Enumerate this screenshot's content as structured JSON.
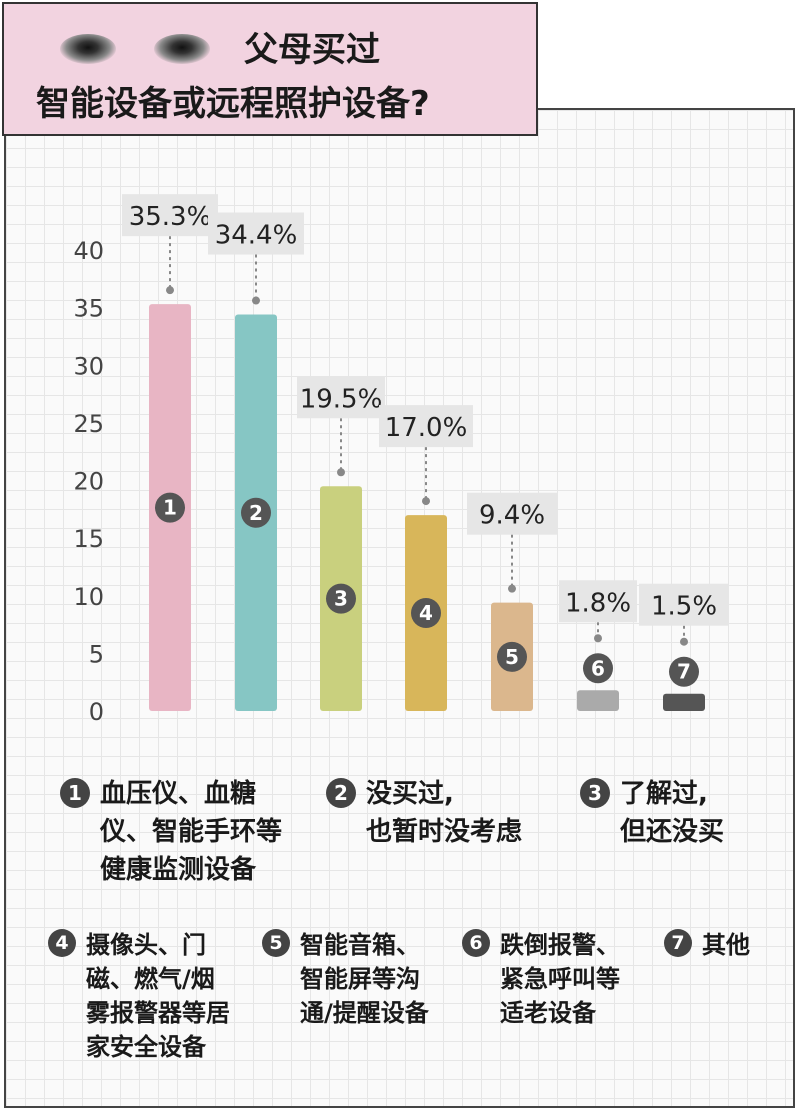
{
  "title": {
    "line1": "父母买过",
    "line2": "智能设备或远程照护设备?"
  },
  "chart_data": {
    "type": "bar",
    "categories": [
      "1",
      "2",
      "3",
      "4",
      "5",
      "6",
      "7"
    ],
    "values": [
      35.3,
      34.4,
      19.5,
      17.0,
      9.4,
      1.8,
      1.5
    ],
    "value_labels": [
      "35.3%",
      "34.4%",
      "19.5%",
      "17.0%",
      "9.4%",
      "1.8%",
      "1.5%"
    ],
    "bar_markers": [
      "1",
      "2",
      "3",
      "4",
      "5",
      "6",
      "7"
    ],
    "colors": [
      "#e8b5c4",
      "#86c6c4",
      "#c9d07e",
      "#d8b65a",
      "#dbb78d",
      "#aaaaaa",
      "#555555"
    ],
    "yticks": [
      "0",
      "5",
      "10",
      "15",
      "20",
      "25",
      "30",
      "35",
      "40"
    ],
    "ylim": [
      0,
      40
    ],
    "grid": true,
    "legend_placement": "bottom"
  },
  "legend": [
    {
      "num": "1",
      "text": "血压仪、血糖\n仪、智能手环等\n健康监测设备"
    },
    {
      "num": "2",
      "text": "没买过,\n也暂时没考虑"
    },
    {
      "num": "3",
      "text": "了解过,\n但还没买"
    },
    {
      "num": "4",
      "text": "摄像头、门\n磁、燃气/烟\n雾报警器等居\n家安全设备"
    },
    {
      "num": "5",
      "text": "智能音箱、\n智能屏等沟\n通/提醒设备"
    },
    {
      "num": "6",
      "text": "跌倒报警、\n紧急呼叫等\n适老设备"
    },
    {
      "num": "7",
      "text": "其他"
    }
  ]
}
